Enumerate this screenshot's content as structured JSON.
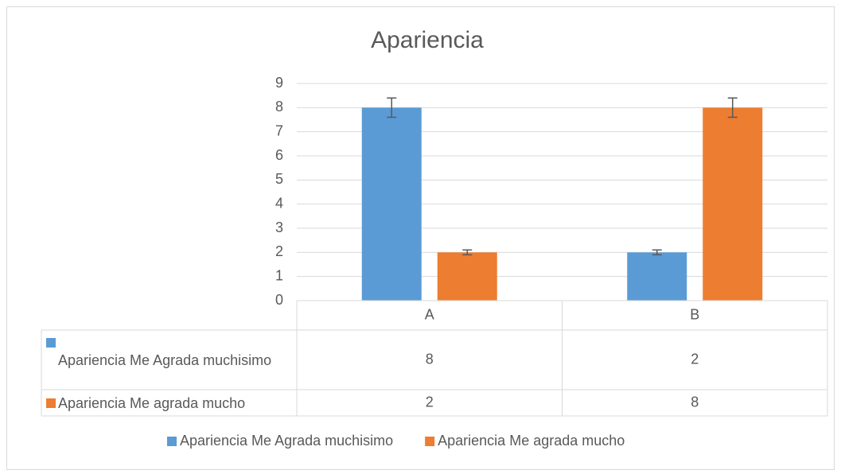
{
  "chart_data": {
    "type": "bar",
    "title": "Apariencia",
    "categories": [
      "A",
      "B"
    ],
    "series": [
      {
        "name": "Apariencia Me Agrada muchisimo",
        "color": "#5b9bd5",
        "values": [
          8,
          2
        ],
        "errors": [
          0.4,
          0.1
        ]
      },
      {
        "name": "Apariencia Me agrada mucho",
        "color": "#ed7d31",
        "values": [
          2,
          8
        ],
        "errors": [
          0.1,
          0.4
        ]
      }
    ],
    "ylim": [
      0,
      9
    ],
    "yticks": [
      0,
      1,
      2,
      3,
      4,
      5,
      6,
      7,
      8,
      9
    ],
    "grid": true,
    "legend": "bottom",
    "data_table": true
  }
}
